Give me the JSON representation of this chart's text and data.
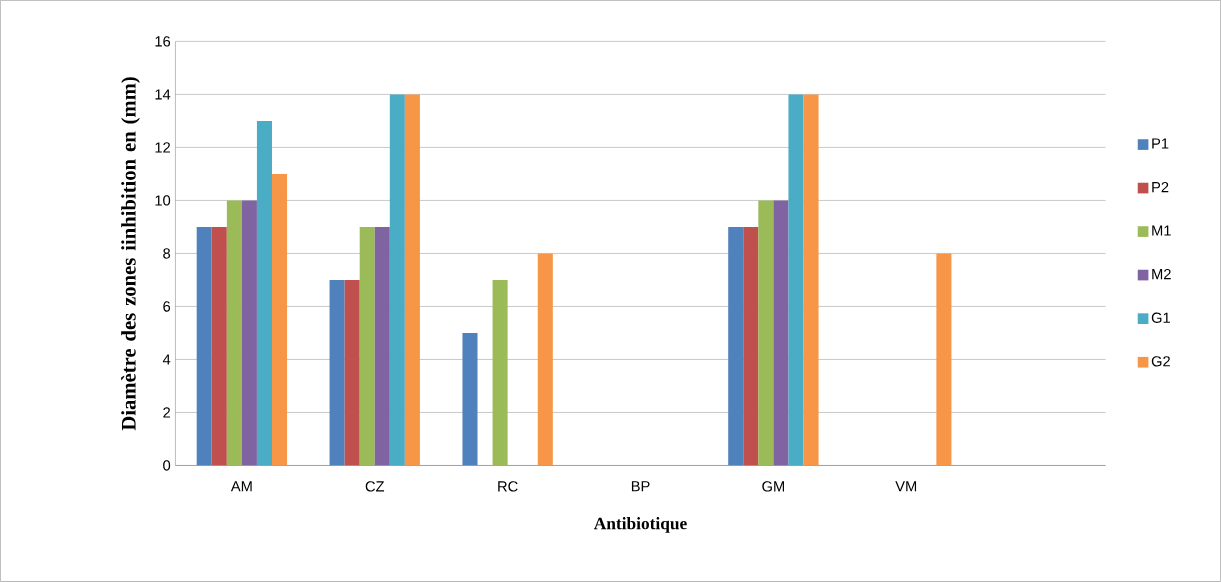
{
  "chart_data": {
    "type": "bar",
    "xlabel": "Antibiotique",
    "ylabel": "Diamètre des zones iinhibition en (mm)",
    "categories": [
      "AM",
      "CZ",
      "RC",
      "BP",
      "GM",
      "VM",
      null
    ],
    "series": [
      {
        "name": "P1",
        "color": "#4f81bd",
        "values": [
          9,
          7,
          5,
          0,
          9,
          0,
          0
        ]
      },
      {
        "name": "P2",
        "color": "#c0504d",
        "values": [
          9,
          7,
          0,
          0,
          9,
          0,
          0
        ]
      },
      {
        "name": "M1",
        "color": "#9bbb59",
        "values": [
          10,
          9,
          7,
          0,
          10,
          0,
          0
        ]
      },
      {
        "name": "M2",
        "color": "#8064a2",
        "values": [
          10,
          9,
          0,
          0,
          10,
          0,
          0
        ]
      },
      {
        "name": "G1",
        "color": "#4bacc6",
        "values": [
          13,
          14,
          0,
          0,
          14,
          0,
          0
        ]
      },
      {
        "name": "G2",
        "color": "#f79646",
        "values": [
          11,
          14,
          8,
          0,
          14,
          8,
          0
        ]
      }
    ],
    "ylim": [
      0,
      16
    ],
    "yticks": [
      0,
      2,
      4,
      6,
      8,
      10,
      12,
      14,
      16
    ],
    "grid": "y",
    "legend": "right"
  }
}
